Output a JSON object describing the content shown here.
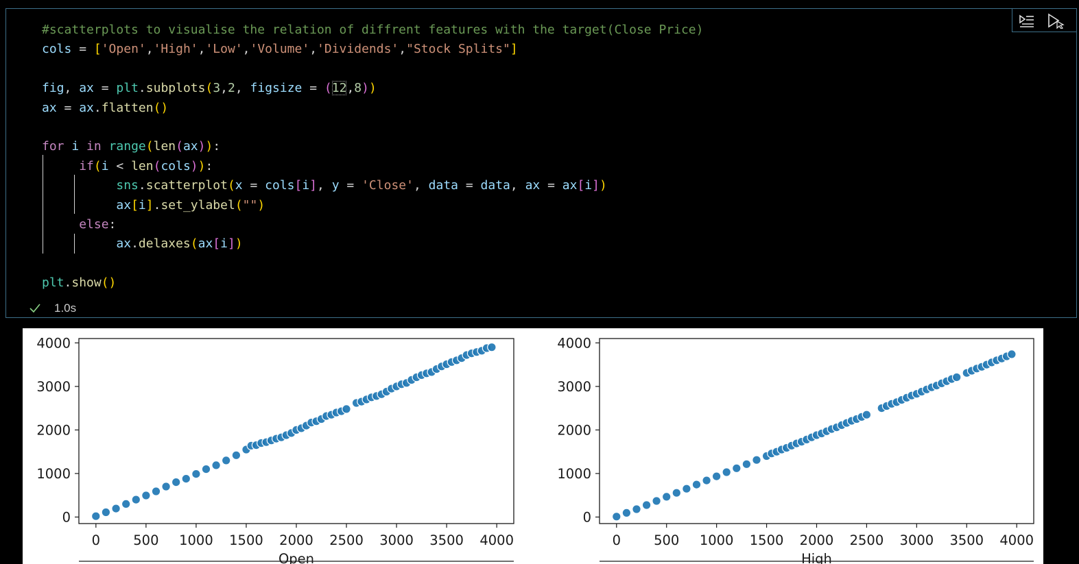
{
  "cell": {
    "status_time": "1.0s",
    "toolbar": {
      "run_by_line_icon": "run-by-line-icon",
      "run_cursor_icon": "execute-cursor-icon"
    },
    "colors": {
      "comment": "#6a9955",
      "variable": "#9cdcfe",
      "string": "#ce9178",
      "function": "#dcdcaa",
      "keyword": "#c586c0",
      "number": "#b5cea8",
      "border": "#3d6f8a",
      "success": "#89d185"
    },
    "code": [
      [
        {
          "t": "#scatterplots to visualise the relation of diffrent features with the target(Close Price)",
          "c": "c-com"
        }
      ],
      [
        {
          "t": "cols",
          "c": "c-var"
        },
        {
          "t": " = ",
          "c": "c-white"
        },
        {
          "t": "[",
          "c": "c-p1"
        },
        {
          "t": "'Open'",
          "c": "c-str"
        },
        {
          "t": ",",
          "c": "c-white"
        },
        {
          "t": "'High'",
          "c": "c-str"
        },
        {
          "t": ",",
          "c": "c-white"
        },
        {
          "t": "'Low'",
          "c": "c-str"
        },
        {
          "t": ",",
          "c": "c-white"
        },
        {
          "t": "'Volume'",
          "c": "c-str"
        },
        {
          "t": ",",
          "c": "c-white"
        },
        {
          "t": "'Dividends'",
          "c": "c-str"
        },
        {
          "t": ",",
          "c": "c-white"
        },
        {
          "t": "\"Stock Splits\"",
          "c": "c-str"
        },
        {
          "t": "]",
          "c": "c-p1"
        }
      ],
      [],
      [
        {
          "t": "fig",
          "c": "c-var"
        },
        {
          "t": ", ",
          "c": "c-white"
        },
        {
          "t": "ax",
          "c": "c-var"
        },
        {
          "t": " = ",
          "c": "c-white"
        },
        {
          "t": "plt",
          "c": "c-mod"
        },
        {
          "t": ".",
          "c": "c-white"
        },
        {
          "t": "subplots",
          "c": "c-fn"
        },
        {
          "t": "(",
          "c": "c-p1"
        },
        {
          "t": "3",
          "c": "c-num"
        },
        {
          "t": ",",
          "c": "c-white"
        },
        {
          "t": "2",
          "c": "c-num"
        },
        {
          "t": ", ",
          "c": "c-white"
        },
        {
          "t": "figsize",
          "c": "c-var"
        },
        {
          "t": " = ",
          "c": "c-white"
        },
        {
          "t": "(",
          "c": "c-p2"
        },
        {
          "t": "12",
          "c": "c-num boxed"
        },
        {
          "t": ",",
          "c": "c-white"
        },
        {
          "t": "8",
          "c": "c-num"
        },
        {
          "t": ")",
          "c": "c-p2"
        },
        {
          "t": ")",
          "c": "c-p1"
        }
      ],
      [
        {
          "t": "ax",
          "c": "c-var"
        },
        {
          "t": " = ",
          "c": "c-white"
        },
        {
          "t": "ax",
          "c": "c-var"
        },
        {
          "t": ".",
          "c": "c-white"
        },
        {
          "t": "flatten",
          "c": "c-fn"
        },
        {
          "t": "()",
          "c": "c-p1"
        }
      ],
      [],
      [
        {
          "t": "for",
          "c": "c-kw"
        },
        {
          "t": " ",
          "c": "c-white"
        },
        {
          "t": "i",
          "c": "c-var"
        },
        {
          "t": " ",
          "c": "c-white"
        },
        {
          "t": "in",
          "c": "c-kw"
        },
        {
          "t": " ",
          "c": "c-white"
        },
        {
          "t": "range",
          "c": "c-mod"
        },
        {
          "t": "(",
          "c": "c-p1"
        },
        {
          "t": "len",
          "c": "c-fn"
        },
        {
          "t": "(",
          "c": "c-p2"
        },
        {
          "t": "ax",
          "c": "c-var"
        },
        {
          "t": ")",
          "c": "c-p2"
        },
        {
          "t": ")",
          "c": "c-p1"
        },
        {
          "t": ":",
          "c": "c-white"
        }
      ],
      [
        {
          "t": "     ",
          "c": "c-white"
        },
        {
          "t": "if",
          "c": "c-kw"
        },
        {
          "t": "(",
          "c": "c-p1"
        },
        {
          "t": "i",
          "c": "c-var"
        },
        {
          "t": " < ",
          "c": "c-white"
        },
        {
          "t": "len",
          "c": "c-fn"
        },
        {
          "t": "(",
          "c": "c-p2"
        },
        {
          "t": "cols",
          "c": "c-var"
        },
        {
          "t": ")",
          "c": "c-p2"
        },
        {
          "t": ")",
          "c": "c-p1"
        },
        {
          "t": ":",
          "c": "c-white"
        }
      ],
      [
        {
          "t": "          ",
          "c": "c-white"
        },
        {
          "t": "sns",
          "c": "c-mod"
        },
        {
          "t": ".",
          "c": "c-white"
        },
        {
          "t": "scatterplot",
          "c": "c-fn"
        },
        {
          "t": "(",
          "c": "c-p1"
        },
        {
          "t": "x",
          "c": "c-var"
        },
        {
          "t": " = ",
          "c": "c-white"
        },
        {
          "t": "cols",
          "c": "c-var"
        },
        {
          "t": "[",
          "c": "c-p2"
        },
        {
          "t": "i",
          "c": "c-var"
        },
        {
          "t": "]",
          "c": "c-p2"
        },
        {
          "t": ", ",
          "c": "c-white"
        },
        {
          "t": "y",
          "c": "c-var"
        },
        {
          "t": " = ",
          "c": "c-white"
        },
        {
          "t": "'Close'",
          "c": "c-str"
        },
        {
          "t": ", ",
          "c": "c-white"
        },
        {
          "t": "data",
          "c": "c-var"
        },
        {
          "t": " = ",
          "c": "c-white"
        },
        {
          "t": "data",
          "c": "c-var"
        },
        {
          "t": ", ",
          "c": "c-white"
        },
        {
          "t": "ax",
          "c": "c-var"
        },
        {
          "t": " = ",
          "c": "c-white"
        },
        {
          "t": "ax",
          "c": "c-var"
        },
        {
          "t": "[",
          "c": "c-p2"
        },
        {
          "t": "i",
          "c": "c-var"
        },
        {
          "t": "]",
          "c": "c-p2"
        },
        {
          "t": ")",
          "c": "c-p1"
        }
      ],
      [
        {
          "t": "          ",
          "c": "c-white"
        },
        {
          "t": "ax",
          "c": "c-var"
        },
        {
          "t": "[",
          "c": "c-p1"
        },
        {
          "t": "i",
          "c": "c-var"
        },
        {
          "t": "]",
          "c": "c-p1"
        },
        {
          "t": ".",
          "c": "c-white"
        },
        {
          "t": "set_ylabel",
          "c": "c-fn"
        },
        {
          "t": "(",
          "c": "c-p1"
        },
        {
          "t": "\"\"",
          "c": "c-str"
        },
        {
          "t": ")",
          "c": "c-p1"
        }
      ],
      [
        {
          "t": "     ",
          "c": "c-white"
        },
        {
          "t": "else",
          "c": "c-kw"
        },
        {
          "t": ":",
          "c": "c-white"
        }
      ],
      [
        {
          "t": "          ",
          "c": "c-white"
        },
        {
          "t": "ax",
          "c": "c-var"
        },
        {
          "t": ".",
          "c": "c-white"
        },
        {
          "t": "delaxes",
          "c": "c-fn"
        },
        {
          "t": "(",
          "c": "c-p1"
        },
        {
          "t": "ax",
          "c": "c-var"
        },
        {
          "t": "[",
          "c": "c-p2"
        },
        {
          "t": "i",
          "c": "c-var"
        },
        {
          "t": "]",
          "c": "c-p2"
        },
        {
          "t": ")",
          "c": "c-p1"
        }
      ],
      [],
      [
        {
          "t": "plt",
          "c": "c-mod"
        },
        {
          "t": ".",
          "c": "c-white"
        },
        {
          "t": "show",
          "c": "c-fn"
        },
        {
          "t": "()",
          "c": "c-p1"
        }
      ]
    ]
  },
  "chart_data": [
    {
      "type": "scatter",
      "xlabel": "Open",
      "ylabel": "",
      "xlim": [
        -170,
        4170
      ],
      "ylim": [
        -150,
        4100
      ],
      "xticks": [
        "0",
        "500",
        "1000",
        "1500",
        "2000",
        "2500",
        "3000",
        "3500",
        "4000"
      ],
      "yticks": [
        "0",
        "1000",
        "2000",
        "3000",
        "4000"
      ],
      "color": "#1f77b4",
      "points_x": [
        0,
        100,
        200,
        300,
        400,
        500,
        600,
        700,
        800,
        900,
        1000,
        1100,
        1200,
        1300,
        1400,
        1500,
        1550,
        1600,
        1650,
        1700,
        1750,
        1800,
        1850,
        1900,
        1950,
        2000,
        2050,
        2100,
        2150,
        2200,
        2250,
        2300,
        2350,
        2400,
        2450,
        2500,
        2600,
        2650,
        2700,
        2750,
        2800,
        2850,
        2900,
        2950,
        3000,
        3050,
        3100,
        3150,
        3200,
        3250,
        3300,
        3350,
        3400,
        3450,
        3500,
        3550,
        3600,
        3650,
        3700,
        3750,
        3800,
        3850,
        3900,
        3950
      ],
      "points_y": [
        20,
        110,
        195,
        300,
        400,
        495,
        590,
        700,
        800,
        880,
        990,
        1100,
        1190,
        1300,
        1420,
        1550,
        1640,
        1650,
        1700,
        1720,
        1760,
        1800,
        1830,
        1880,
        1930,
        2000,
        2040,
        2100,
        2170,
        2200,
        2250,
        2320,
        2350,
        2400,
        2430,
        2480,
        2620,
        2650,
        2700,
        2750,
        2780,
        2820,
        2880,
        2950,
        3000,
        3050,
        3080,
        3150,
        3210,
        3260,
        3300,
        3330,
        3400,
        3460,
        3510,
        3560,
        3600,
        3650,
        3720,
        3760,
        3790,
        3820,
        3880,
        3900
      ]
    },
    {
      "type": "scatter",
      "xlabel": "High",
      "ylabel": "",
      "xlim": [
        -170,
        4170
      ],
      "ylim": [
        -150,
        4100
      ],
      "xticks": [
        "0",
        "500",
        "1000",
        "1500",
        "2000",
        "2500",
        "3000",
        "3500",
        "4000"
      ],
      "yticks": [
        "0",
        "1000",
        "2000",
        "3000",
        "4000"
      ],
      "color": "#1f77b4",
      "points_x": [
        0,
        100,
        200,
        300,
        400,
        500,
        600,
        700,
        800,
        900,
        1000,
        1100,
        1200,
        1300,
        1400,
        1500,
        1550,
        1600,
        1650,
        1700,
        1750,
        1800,
        1850,
        1900,
        1950,
        2000,
        2050,
        2100,
        2150,
        2200,
        2250,
        2300,
        2350,
        2400,
        2450,
        2500,
        2650,
        2700,
        2750,
        2800,
        2850,
        2900,
        2950,
        3000,
        3050,
        3100,
        3150,
        3200,
        3250,
        3300,
        3350,
        3400,
        3500,
        3550,
        3600,
        3650,
        3700,
        3750,
        3800,
        3850,
        3900,
        3950
      ],
      "points_y": [
        10,
        95,
        180,
        275,
        370,
        465,
        555,
        650,
        745,
        840,
        935,
        1030,
        1120,
        1215,
        1310,
        1400,
        1460,
        1500,
        1550,
        1590,
        1640,
        1690,
        1730,
        1780,
        1830,
        1880,
        1920,
        1970,
        2020,
        2060,
        2110,
        2160,
        2210,
        2250,
        2300,
        2350,
        2500,
        2550,
        2600,
        2640,
        2690,
        2740,
        2790,
        2830,
        2880,
        2930,
        2980,
        3020,
        3070,
        3120,
        3170,
        3210,
        3310,
        3360,
        3410,
        3450,
        3500,
        3550,
        3600,
        3640,
        3690,
        3740
      ]
    }
  ]
}
